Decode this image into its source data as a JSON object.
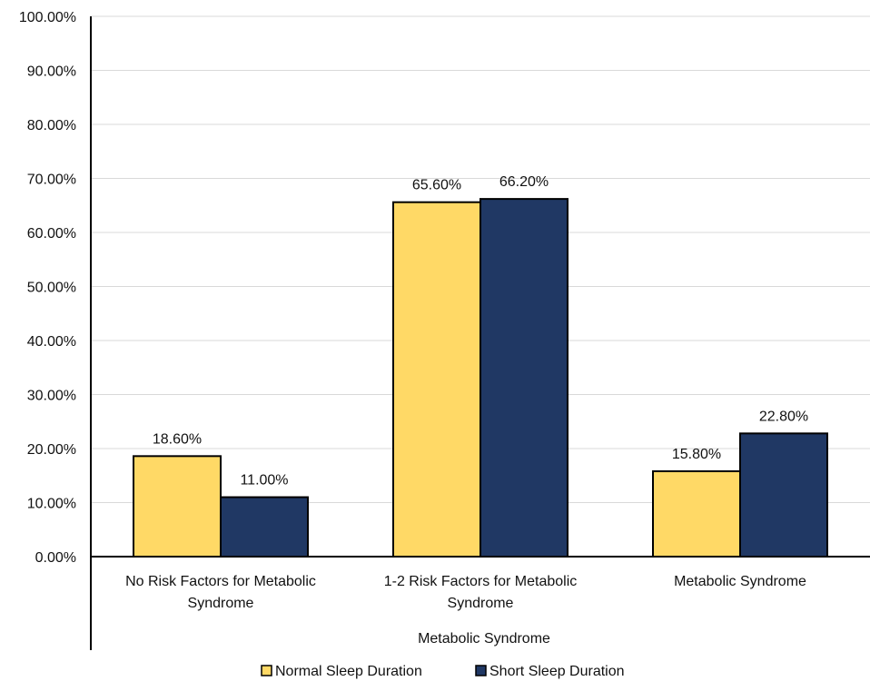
{
  "chart_data": {
    "type": "bar",
    "title": "",
    "xlabel": "Metabolic Syndrome",
    "ylabel": "",
    "ylim": [
      0,
      100
    ],
    "yticks": [
      0,
      10,
      20,
      30,
      40,
      50,
      60,
      70,
      80,
      90,
      100
    ],
    "ytick_labels": [
      "0.00%",
      "10.00%",
      "20.00%",
      "30.00%",
      "40.00%",
      "50.00%",
      "60.00%",
      "70.00%",
      "80.00%",
      "90.00%",
      "100.00%"
    ],
    "grid": true,
    "legend_position": "bottom",
    "categories": [
      [
        "No Risk Factors for Metabolic",
        "Syndrome"
      ],
      [
        "1-2 Risk Factors for Metabolic",
        "Syndrome"
      ],
      [
        "Metabolic Syndrome"
      ]
    ],
    "series": [
      {
        "name": "Normal Sleep Duration",
        "color": "#FFD966",
        "values": [
          18.6,
          65.6,
          15.8
        ],
        "labels": [
          "18.60%",
          "65.60%",
          "15.80%"
        ]
      },
      {
        "name": "Short Sleep Duration",
        "color": "#203864",
        "values": [
          11.0,
          66.2,
          22.8
        ],
        "labels": [
          "11.00%",
          "66.20%",
          "22.80%"
        ]
      }
    ]
  }
}
